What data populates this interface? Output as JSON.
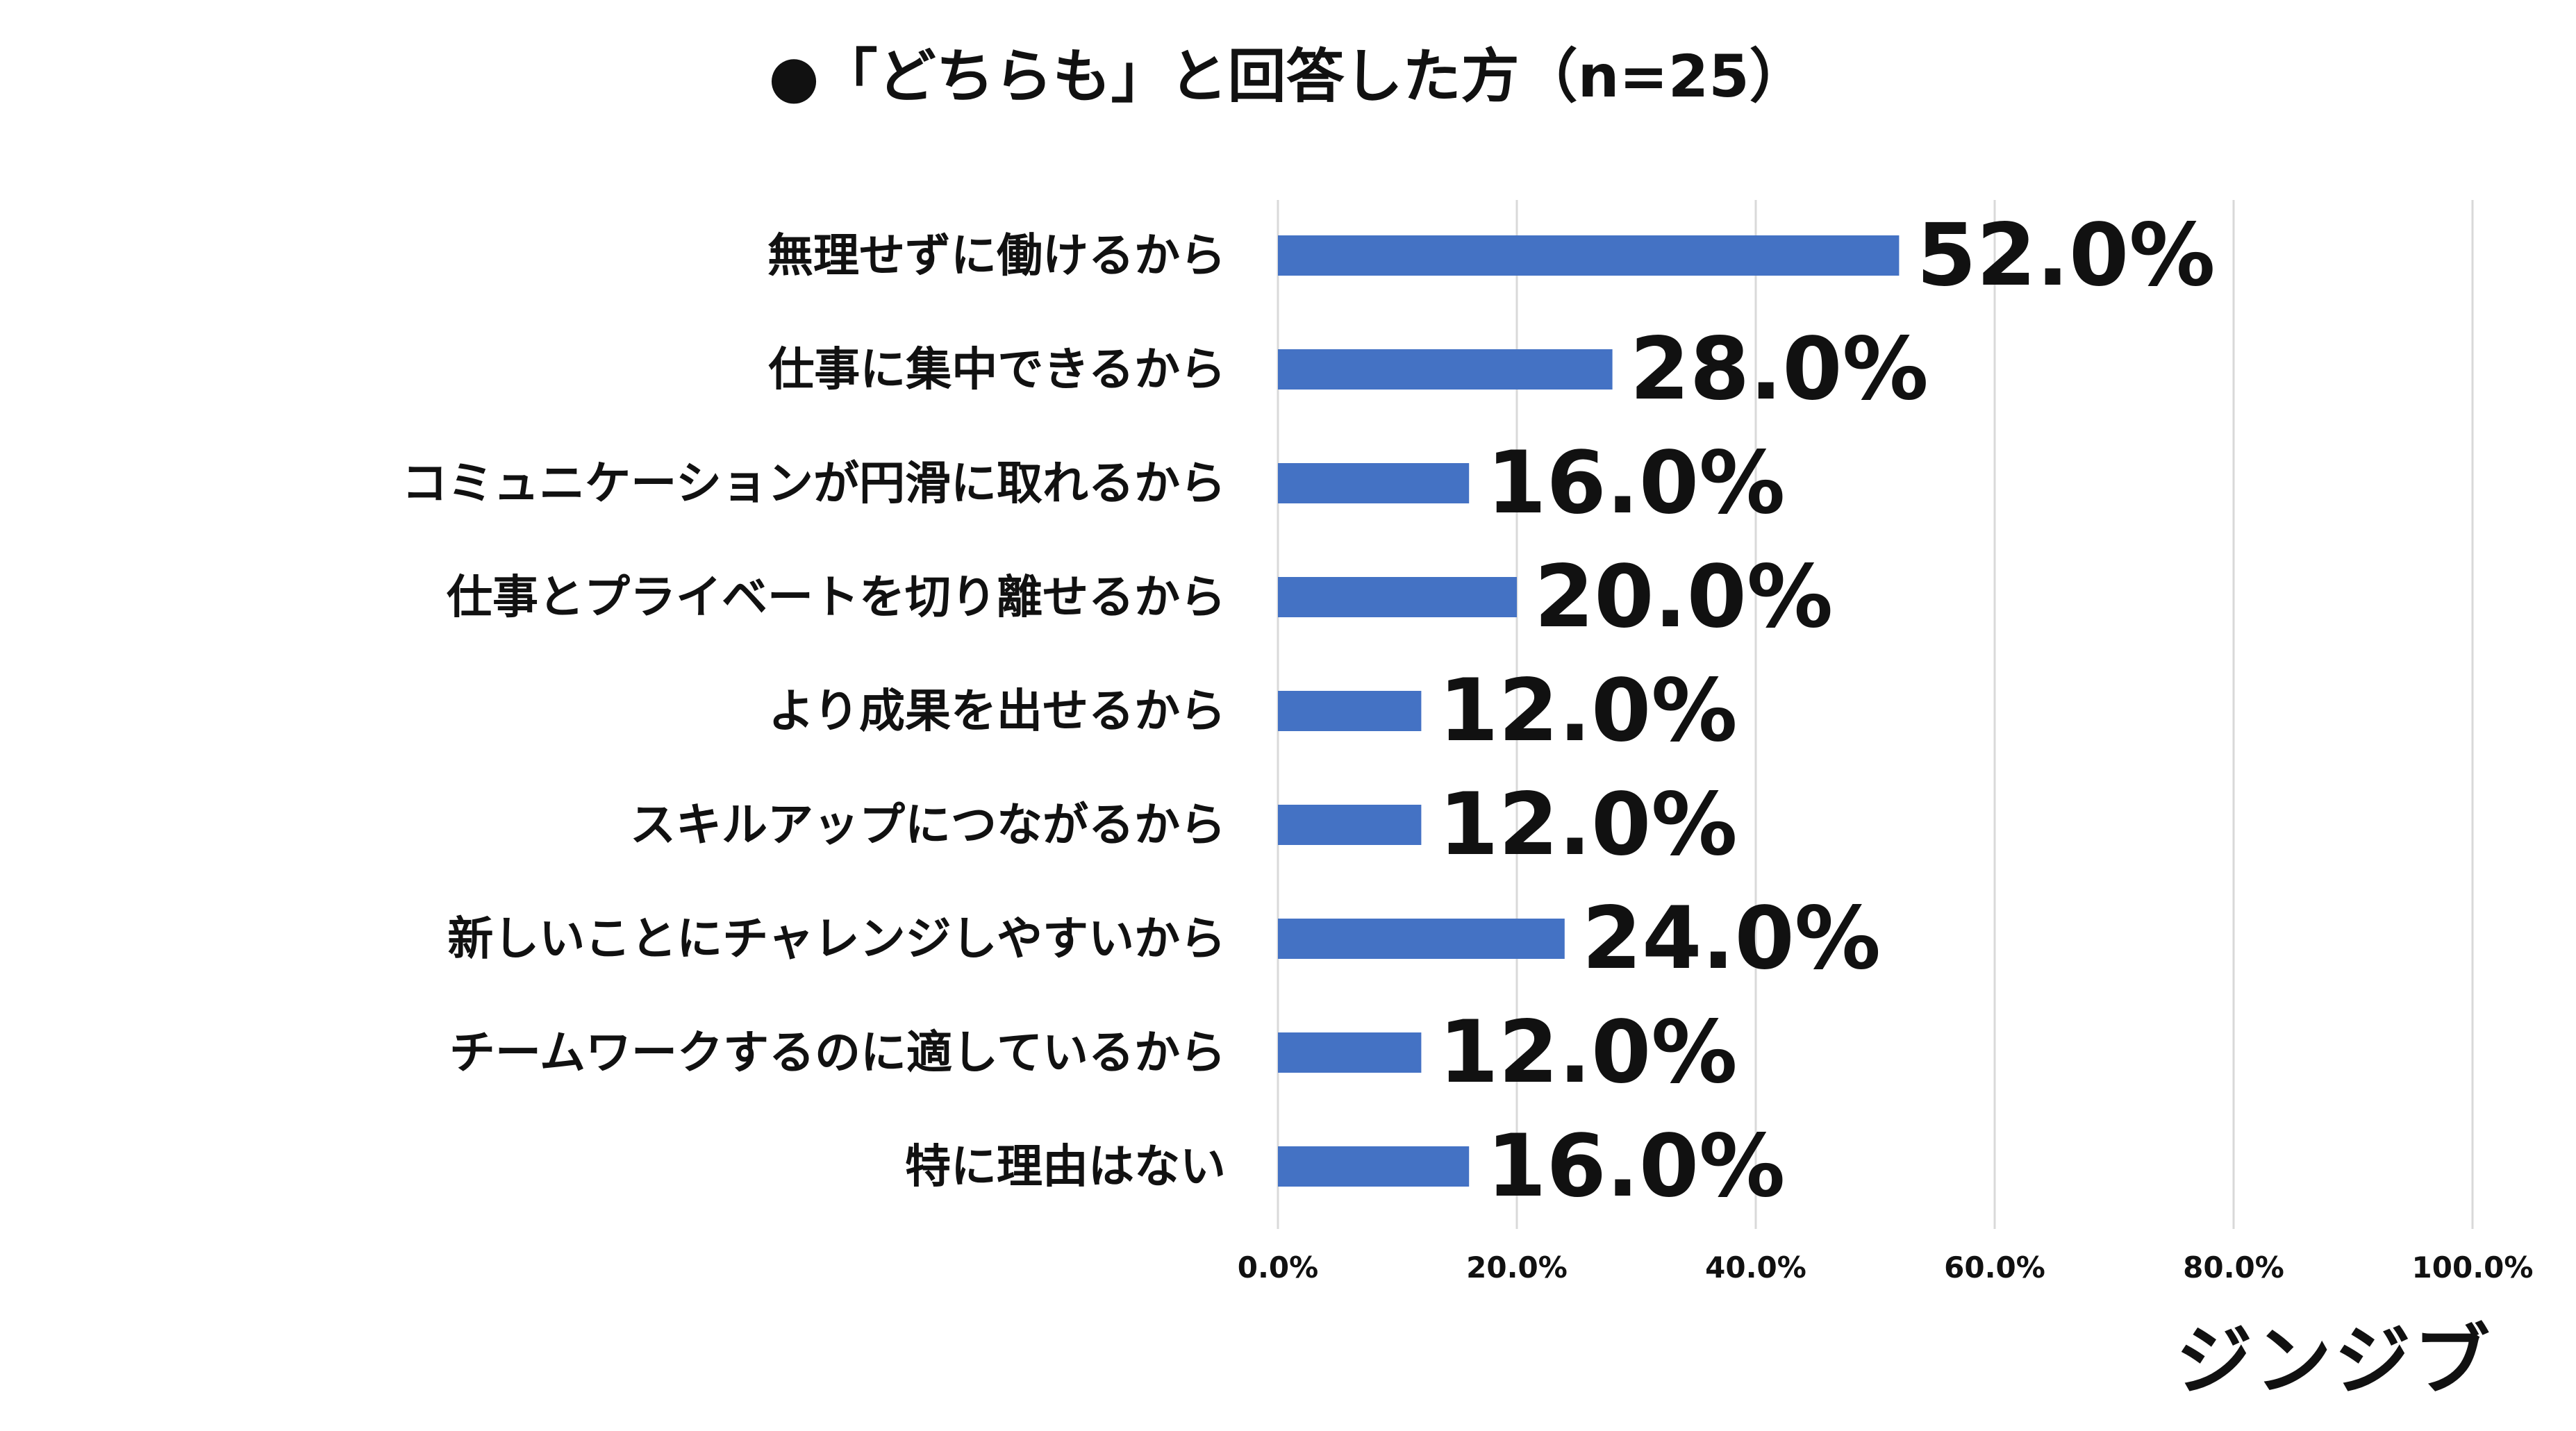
{
  "chart_data": {
    "type": "bar",
    "orientation": "horizontal",
    "title": "●「どちらも」と回答した方（n=25）",
    "categories": [
      "無理せずに働けるから",
      "仕事に集中できるから",
      "コミュニケーションが円滑に取れるから",
      "仕事とプライベートを切り離せるから",
      "より成果を出せるから",
      "スキルアップにつながるから",
      "新しいことにチャレンジしやすいから",
      "チームワークするのに適しているから",
      "特に理由はない"
    ],
    "values": [
      52.0,
      28.0,
      16.0,
      20.0,
      12.0,
      12.0,
      24.0,
      12.0,
      16.0
    ],
    "value_labels": [
      "52.0%",
      "28.0%",
      "16.0%",
      "20.0%",
      "12.0%",
      "12.0%",
      "24.0%",
      "12.0%",
      "16.0%"
    ],
    "xlim": [
      0,
      100
    ],
    "x_ticks": [
      0,
      20,
      40,
      60,
      80,
      100
    ],
    "x_tick_labels": [
      "0.0%",
      "20.0%",
      "40.0%",
      "60.0%",
      "80.0%",
      "100.0%"
    ],
    "grid": true,
    "legend": "none",
    "bar_color": "#4472c4"
  },
  "brand": {
    "name": "ジンジブ"
  }
}
